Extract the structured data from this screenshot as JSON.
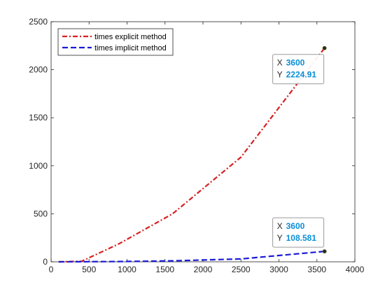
{
  "chart_data": {
    "type": "line",
    "title": "",
    "xlabel": "",
    "ylabel": "",
    "xlim": [
      0,
      4000
    ],
    "ylim": [
      0,
      2500
    ],
    "xticks": [
      0,
      500,
      1000,
      1500,
      2000,
      2500,
      3000,
      3500,
      4000
    ],
    "yticks": [
      0,
      500,
      1000,
      1500,
      2000,
      2500
    ],
    "grid": false,
    "legend_position": "top-left",
    "series": [
      {
        "name": "times explicit method",
        "color": "#d62020",
        "style": "dash-dot",
        "x": [
          100,
          400,
          900,
          1600,
          2500,
          3600
        ],
        "y": [
          0,
          5,
          190,
          500,
          1090,
          2224.91
        ]
      },
      {
        "name": "times implicit method",
        "color": "#1a1ad6",
        "style": "dashed",
        "x": [
          100,
          400,
          900,
          1600,
          2500,
          3600
        ],
        "y": [
          0,
          1,
          3,
          10,
          30,
          108.581
        ]
      }
    ],
    "datatips": [
      {
        "x_key": "X",
        "x_value": "3600",
        "y_key": "Y",
        "y_value": "2224.91",
        "x": 3600,
        "y": 2224.91
      },
      {
        "x_key": "X",
        "x_value": "3600",
        "y_key": "Y",
        "y_value": "108.581",
        "x": 3600,
        "y": 108.581
      }
    ]
  }
}
